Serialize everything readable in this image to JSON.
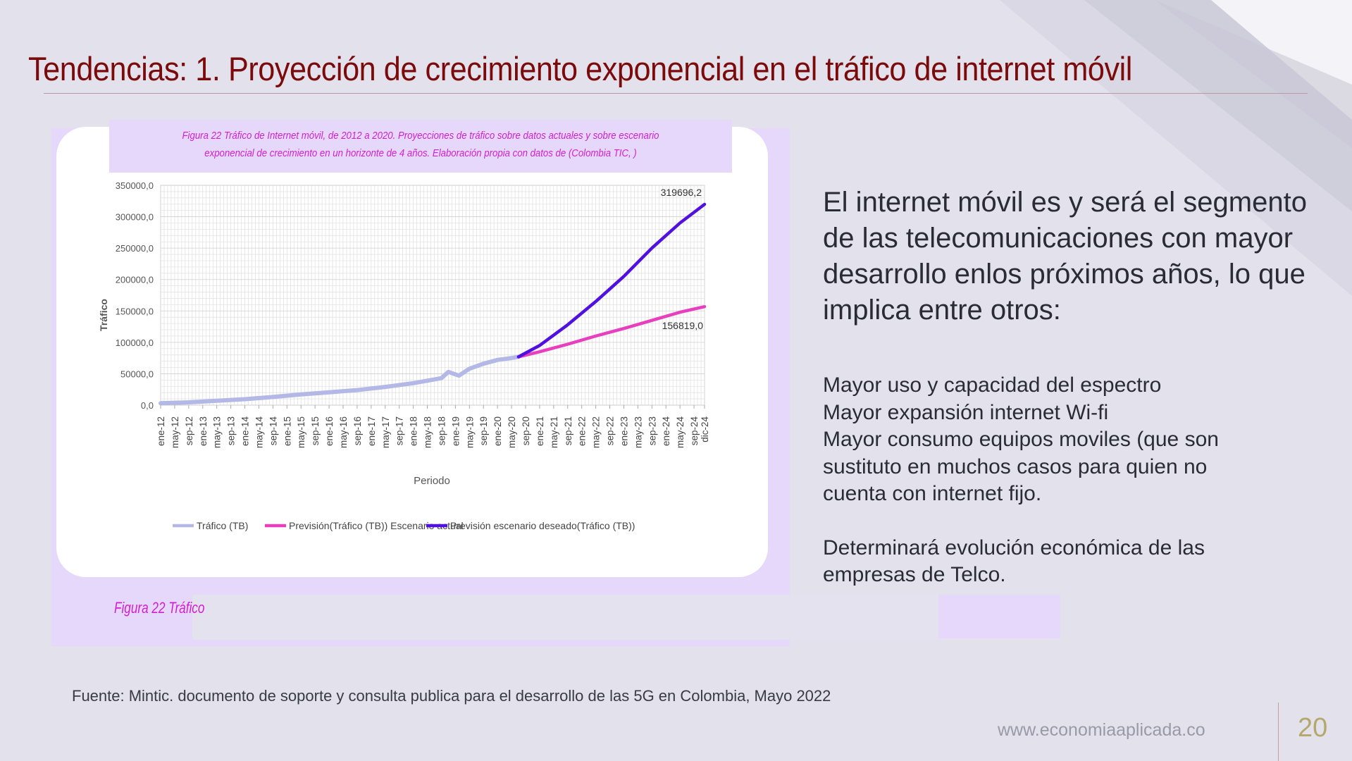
{
  "slide": {
    "title": "Tendencias:  1. Proyección de crecimiento exponencial en el tráfico  de internet móvil",
    "figure_caption": "Figura 22 Tráfico de Internet móvil, de 2012 a 2020. Proyecciones de tráfico sobre datos actuales y sobre escenario exponencial de crecimiento en un horizonte de 4 años. Elaboración propia con datos de (Colombia TIC, )",
    "figure_label_partial": "Figura 22 Tráfico",
    "intro_text": "El internet móvil es y será el segmento de las telecomunicaciones con  mayor desarrollo enlos próximos años, lo que implica entre otros:",
    "implications": [
      "Mayor uso y capacidad del espectro",
      "Mayor expansión internet Wi-fi",
      "Mayor consumo equipos moviles (que son sustituto en muchos casos para quien no cuenta con internet fijo."
    ],
    "conclusion": "Determinará evolución económica de las empresas de Telco.",
    "source": "Fuente: Mintic. documento de soporte y consulta publica para el desarrollo de las 5G en Colombia, Mayo 2022",
    "website": "www.economiaaplicada.co",
    "page_number": "20"
  },
  "colors": {
    "title": "#7b0a0a",
    "caption": "#d21ed2",
    "traffic": "#b3b8e6",
    "forecast_current": "#e83fbf",
    "forecast_desired": "#5010e0"
  },
  "chart_data": {
    "type": "line",
    "xlabel": "Periodo",
    "ylabel": "Tráfico",
    "ylim": [
      0,
      350000
    ],
    "y_ticks": [
      "0,0",
      "50000,0",
      "100000,0",
      "150000,0",
      "200000,0",
      "250000,0",
      "300000,0",
      "350000,0"
    ],
    "y_tick_values": [
      0,
      50000,
      100000,
      150000,
      200000,
      250000,
      300000,
      350000
    ],
    "x_range": [
      "ene-12",
      "dic-24"
    ],
    "x_tick_labels": [
      "ene-12",
      "may-12",
      "sep-12",
      "ene-13",
      "may-13",
      "sep-13",
      "ene-14",
      "may-14",
      "sep-14",
      "ene-15",
      "may-15",
      "sep-15",
      "ene-16",
      "may-16",
      "sep-16",
      "ene-17",
      "may-17",
      "sep-17",
      "ene-18",
      "may-18",
      "sep-18",
      "ene-19",
      "may-19",
      "sep-19",
      "ene-20",
      "may-20",
      "sep-20",
      "ene-21",
      "may-21",
      "sep-21",
      "ene-22",
      "may-22",
      "sep-22",
      "ene-23",
      "may-23",
      "sep-23",
      "ene-24",
      "may-24",
      "sep-24",
      "dic-24"
    ],
    "grid": true,
    "legend_position": "bottom",
    "series": [
      {
        "name": "Tráfico (TB)",
        "color": "#b3b8e6",
        "x": [
          "ene-12",
          "sep-12",
          "may-13",
          "ene-14",
          "sep-14",
          "may-15",
          "ene-16",
          "sep-16",
          "may-17",
          "ene-18",
          "sep-18",
          "nov-18",
          "feb-19",
          "may-19",
          "sep-19",
          "ene-20",
          "may-20",
          "jul-20"
        ],
        "values": [
          3000,
          4500,
          7000,
          9500,
          13000,
          17000,
          20500,
          24000,
          29000,
          35000,
          43000,
          53000,
          47000,
          58000,
          66000,
          72000,
          75000,
          77000
        ]
      },
      {
        "name": "Previsión(Tráfico (TB)) Escenario actual",
        "color": "#e83fbf",
        "x": [
          "jul-20",
          "ene-21",
          "sep-21",
          "may-22",
          "ene-23",
          "sep-23",
          "may-24",
          "dic-24"
        ],
        "values": [
          77000,
          85000,
          97000,
          110000,
          122000,
          135000,
          148000,
          156819
        ]
      },
      {
        "name": "Previsión escenario deseado(Tráfico (TB))",
        "color": "#5010e0",
        "x": [
          "jul-20",
          "ene-21",
          "sep-21",
          "may-22",
          "ene-23",
          "sep-23",
          "may-24",
          "dic-24"
        ],
        "values": [
          77000,
          95000,
          128000,
          165000,
          205000,
          250000,
          290000,
          319696.2
        ]
      }
    ],
    "annotations": [
      {
        "text": "319696,2",
        "x": "dic-24",
        "y": 319696.2
      },
      {
        "text": "156819,0",
        "x": "dic-24",
        "y": 156819
      }
    ]
  }
}
